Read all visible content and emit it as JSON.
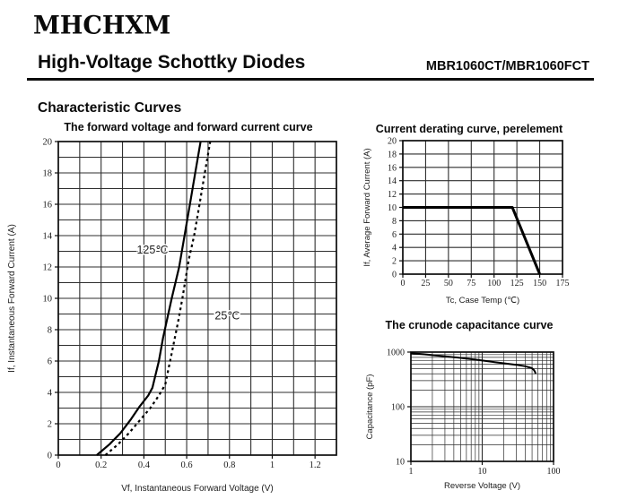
{
  "page": {
    "logo": "MHCHXM",
    "title": "High-Voltage Schottky Diodes",
    "part_number": "MBR1060CT/MBR1060FCT",
    "section_heading": "Characteristic Curves"
  },
  "chart_data": [
    {
      "id": "forward",
      "type": "line",
      "title": "The forward voltage and forward current curve",
      "xlabel": "Vf, Instantaneous Forward Voltage (V)",
      "ylabel": "If, Instantaneous Forward Current (A)",
      "xscale": "linear",
      "yscale": "linear",
      "xlim": [
        0,
        1.3
      ],
      "ylim": [
        0,
        20
      ],
      "x_grid_step": 0.1,
      "y_grid_step": 1,
      "x_ticks": [
        0,
        0.2,
        0.4,
        0.6,
        0.8,
        1,
        1.2
      ],
      "x_tick_labels": [
        "0",
        "0.2",
        "0.4",
        "0.6",
        "0.8",
        "1",
        "1.2"
      ],
      "y_ticks": [
        0,
        2,
        4,
        6,
        8,
        10,
        12,
        14,
        16,
        18,
        20
      ],
      "grid": true,
      "series": [
        {
          "name": "125℃",
          "style": "solid",
          "points": [
            [
              0.18,
              0
            ],
            [
              0.24,
              0.7
            ],
            [
              0.29,
              1.4
            ],
            [
              0.34,
              2.3
            ],
            [
              0.38,
              3.1
            ],
            [
              0.42,
              3.8
            ],
            [
              0.44,
              4.3
            ],
            [
              0.47,
              6
            ],
            [
              0.49,
              7.5
            ],
            [
              0.53,
              10
            ],
            [
              0.565,
              12
            ],
            [
              0.59,
              14
            ],
            [
              0.615,
              16
            ],
            [
              0.64,
              18
            ],
            [
              0.665,
              20
            ]
          ]
        },
        {
          "name": "25℃",
          "style": "dashed",
          "points": [
            [
              0.22,
              0
            ],
            [
              0.28,
              0.7
            ],
            [
              0.33,
              1.4
            ],
            [
              0.38,
              2.2
            ],
            [
              0.43,
              3
            ],
            [
              0.47,
              3.8
            ],
            [
              0.5,
              4.5
            ],
            [
              0.53,
              6.5
            ],
            [
              0.56,
              8.5
            ],
            [
              0.58,
              10
            ],
            [
              0.61,
              12.5
            ],
            [
              0.635,
              14
            ],
            [
              0.66,
              16
            ],
            [
              0.685,
              18
            ],
            [
              0.71,
              20
            ]
          ]
        }
      ],
      "annotations": [
        {
          "text": "125℃",
          "x": 0.44,
          "y": 13.1
        },
        {
          "text": "25℃",
          "x": 0.79,
          "y": 8.9
        }
      ]
    },
    {
      "id": "derating",
      "type": "line",
      "title": "Current derating curve, perelement",
      "xlabel": "Tc, Case Temp (℃)",
      "ylabel": "If, Average Forward Current (A)",
      "xscale": "linear",
      "yscale": "linear",
      "xlim": [
        0,
        175
      ],
      "ylim": [
        0,
        20
      ],
      "x_grid_step": 25,
      "y_grid_step": 2,
      "x_ticks": [
        0,
        25,
        50,
        75,
        100,
        125,
        150,
        175
      ],
      "x_tick_labels": [
        "0",
        "25",
        "50",
        "75",
        "100",
        "125",
        "150",
        "175"
      ],
      "y_ticks": [
        0,
        2,
        4,
        6,
        8,
        10,
        12,
        14,
        16,
        18,
        20
      ],
      "grid": true,
      "series": [
        {
          "name": "derating",
          "style": "solid",
          "points": [
            [
              0,
              10
            ],
            [
              120,
              10
            ],
            [
              150,
              0
            ]
          ]
        }
      ],
      "annotations": []
    },
    {
      "id": "capacitance",
      "type": "line",
      "title": "The crunode capacitance curve",
      "xlabel": "Reverse Voltage (V)",
      "ylabel": "Capacitance (pF)",
      "xscale": "log",
      "yscale": "log",
      "xlim": [
        1,
        100
      ],
      "ylim": [
        10,
        1000
      ],
      "x_ticks": [
        1,
        10,
        100
      ],
      "x_tick_labels": [
        "1",
        "10",
        "100"
      ],
      "y_ticks": [
        10,
        100,
        1000
      ],
      "grid": true,
      "series": [
        {
          "name": "capacitance",
          "style": "solid",
          "points": [
            [
              1,
              955
            ],
            [
              1.5,
              915
            ],
            [
              2,
              880
            ],
            [
              3,
              835
            ],
            [
              4,
              805
            ],
            [
              6,
              762
            ],
            [
              8,
              728
            ],
            [
              10,
              700
            ],
            [
              15,
              655
            ],
            [
              20,
              625
            ],
            [
              30,
              585
            ],
            [
              40,
              550
            ],
            [
              46,
              525
            ],
            [
              50,
              505
            ],
            [
              53,
              470
            ],
            [
              55,
              435
            ],
            [
              56,
              400
            ]
          ]
        }
      ],
      "annotations": []
    }
  ]
}
